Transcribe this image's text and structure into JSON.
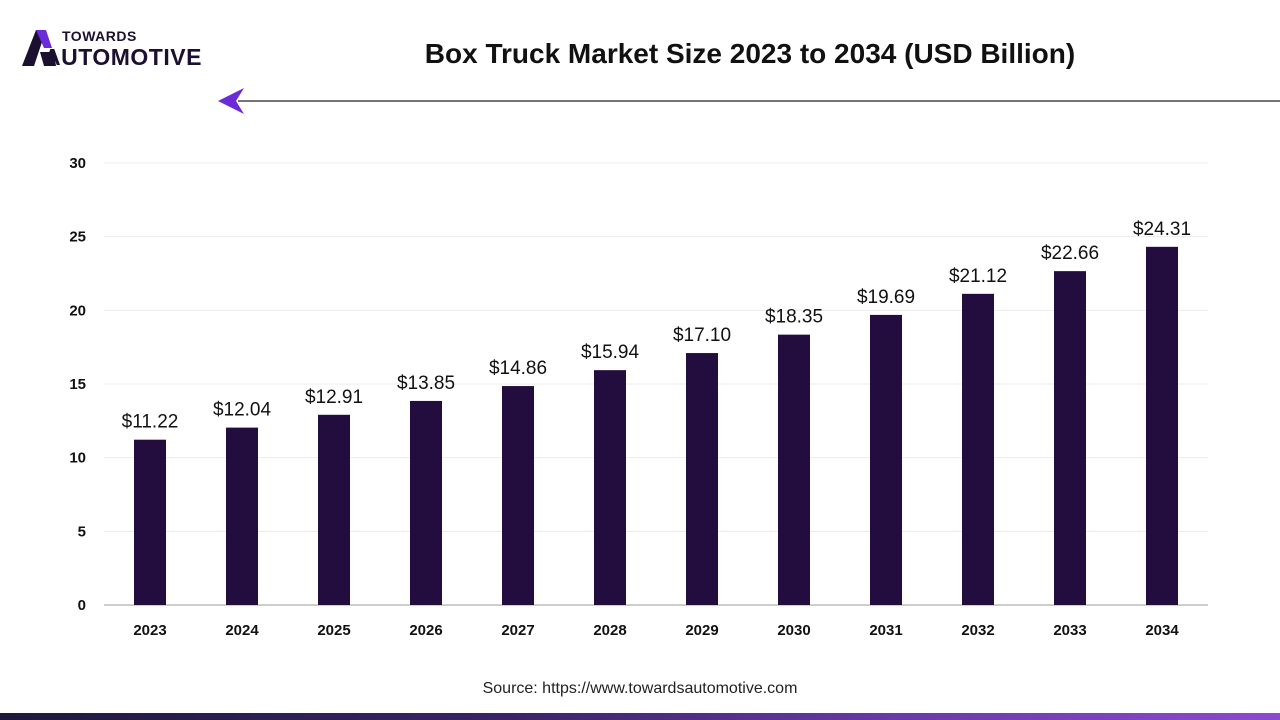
{
  "brand": {
    "line1": "TOWARDS",
    "line2": "AUTOMOTIVE",
    "logo_icon": "towards-automotive-logo-icon",
    "accent_color": "#6a2bd9",
    "bar_color": "#230c3e"
  },
  "source": "Source: https://www.towardsautomotive.com",
  "chart_data": {
    "type": "bar",
    "title": "Box Truck Market Size 2023 to 2034 (USD Billion)",
    "xlabel": "",
    "ylabel": "",
    "categories": [
      "2023",
      "2024",
      "2025",
      "2026",
      "2027",
      "2028",
      "2029",
      "2030",
      "2031",
      "2032",
      "2033",
      "2034"
    ],
    "values": [
      11.22,
      12.04,
      12.91,
      13.85,
      14.86,
      15.94,
      17.1,
      18.35,
      19.69,
      21.12,
      22.66,
      24.31
    ],
    "data_labels": [
      "$11.22",
      "$12.04",
      "$12.91",
      "$13.85",
      "$14.86",
      "$15.94",
      "$17.10",
      "$18.35",
      "$19.69",
      "$21.12",
      "$22.66",
      "$24.31"
    ],
    "ylim": [
      0,
      30
    ],
    "yticks": [
      0,
      5,
      10,
      15,
      20,
      25,
      30
    ],
    "grid": true,
    "legend": "none"
  }
}
